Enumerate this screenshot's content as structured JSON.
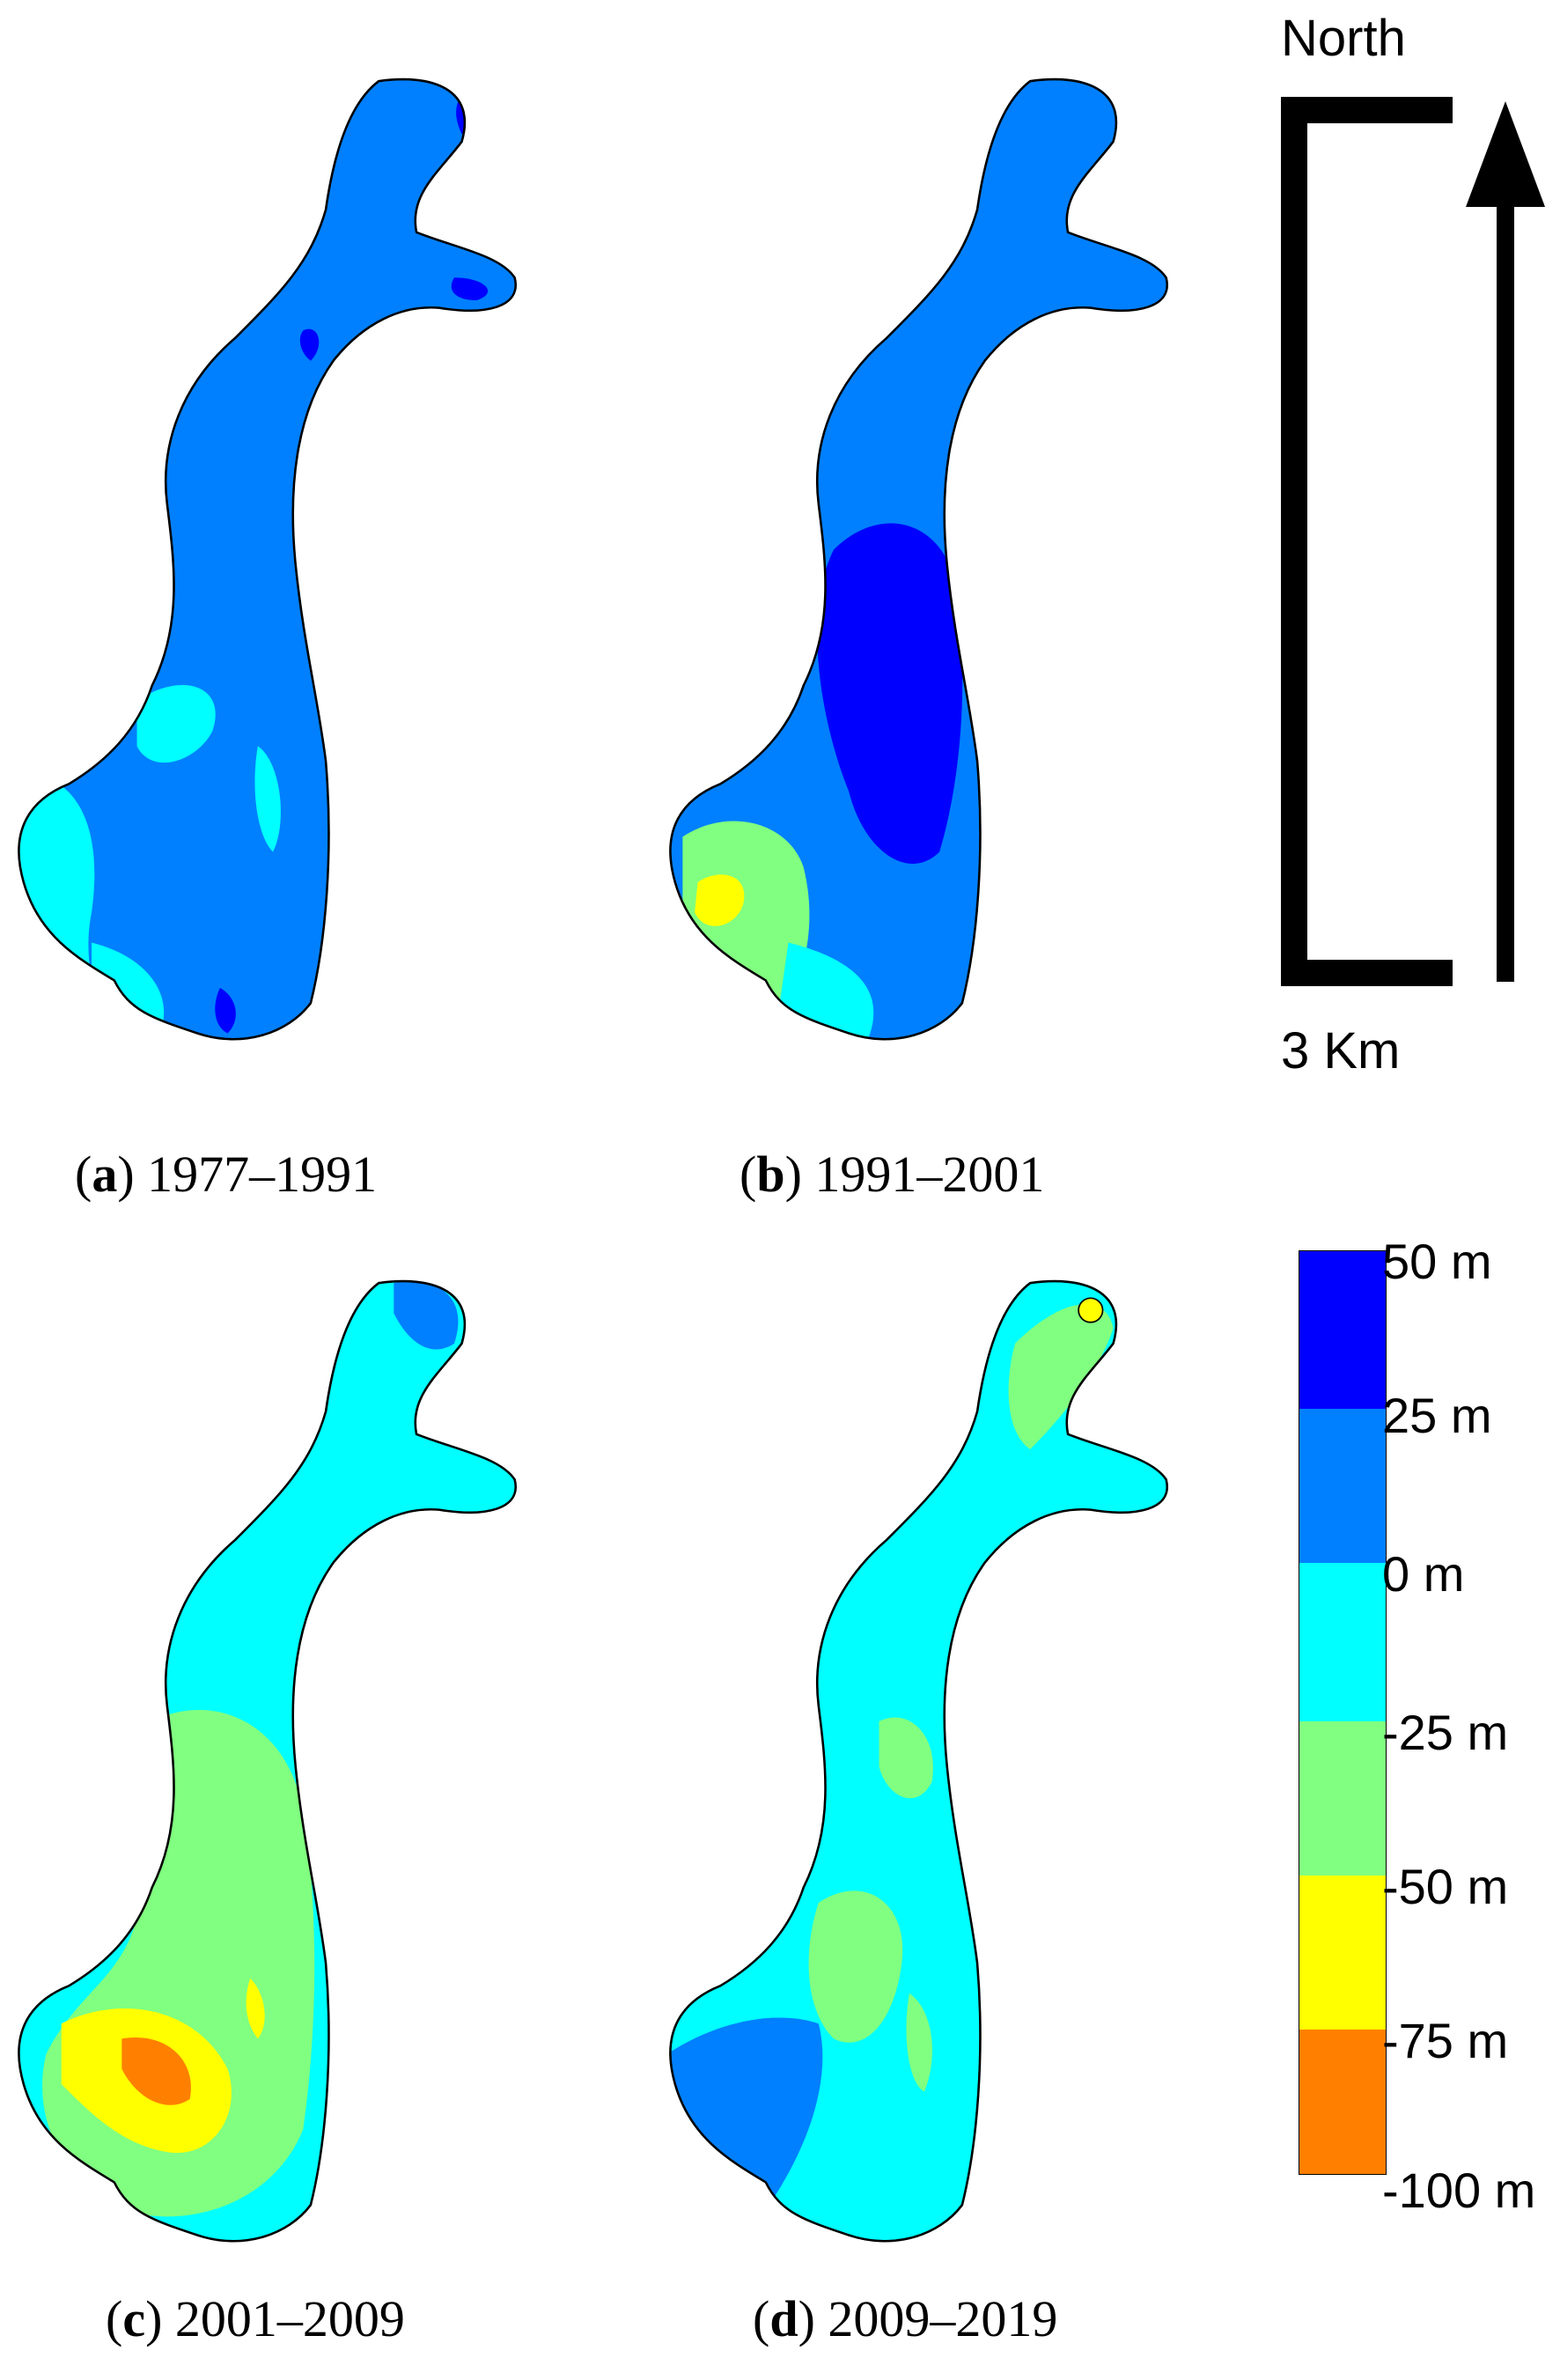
{
  "colors": {
    "dark_blue": "#0000ff",
    "mid_blue": "#0080ff",
    "cyan": "#00ffff",
    "green": "#80ff80",
    "yellow": "#ffff00",
    "orange": "#ff8000",
    "outline": "#000000"
  },
  "panels": [
    {
      "id": "a",
      "letter": "a",
      "period": "1977–1991",
      "base": "mid_blue"
    },
    {
      "id": "b",
      "letter": "b",
      "period": "1991–2001",
      "base": "mid_blue"
    },
    {
      "id": "c",
      "letter": "c",
      "period": "2001–2009",
      "base": "cyan"
    },
    {
      "id": "d",
      "letter": "d",
      "period": "2009–2019",
      "base": "cyan"
    }
  ],
  "scale_bar": {
    "north_label": "North",
    "distance_label": "3 Km",
    "arrow_icon": "north-arrow-icon"
  },
  "legend": {
    "bins": [
      {
        "label": "50 m",
        "color": "#0000ff"
      },
      {
        "label": "25 m",
        "color": "#0080ff"
      },
      {
        "label": "0 m",
        "color": "#00ffff"
      },
      {
        "label": "-25 m",
        "color": "#80ff80"
      },
      {
        "label": "-50 m",
        "color": "#ffff00"
      },
      {
        "label": "-75 m",
        "color": "#ff8000"
      }
    ],
    "bottom_label": "-100 m"
  }
}
